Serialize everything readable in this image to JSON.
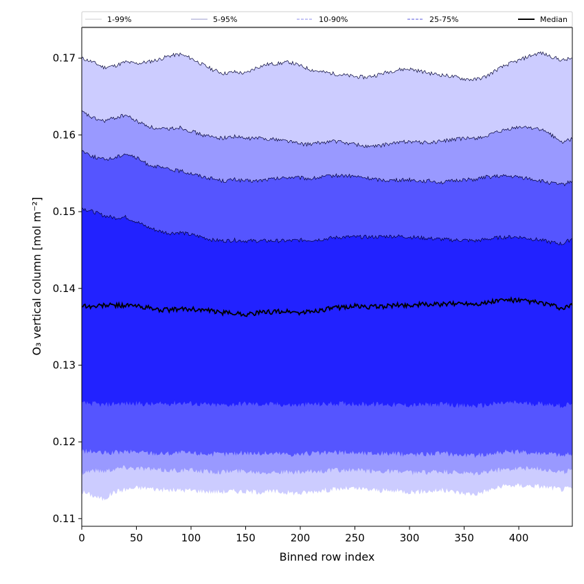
{
  "chart_data": {
    "type": "area",
    "xlabel": "Binned row index",
    "ylabel": "O₃ vertical column [mol m⁻²]",
    "xlim": [
      0,
      449
    ],
    "ylim": [
      0.109,
      0.174
    ],
    "x_ticks": [
      0,
      50,
      100,
      150,
      200,
      250,
      300,
      350,
      400
    ],
    "y_ticks": [
      0.11,
      0.12,
      0.13,
      0.14,
      0.15,
      0.16,
      0.17
    ],
    "y_tick_labels": [
      "0.11",
      "0.12",
      "0.13",
      "0.14",
      "0.15",
      "0.16",
      "0.17"
    ],
    "grid": false,
    "legend_position": "top",
    "x": [
      0,
      10,
      20,
      30,
      40,
      50,
      60,
      70,
      80,
      90,
      100,
      110,
      120,
      130,
      140,
      150,
      160,
      170,
      180,
      190,
      200,
      210,
      220,
      230,
      240,
      250,
      260,
      270,
      280,
      290,
      300,
      310,
      320,
      330,
      340,
      350,
      360,
      370,
      380,
      390,
      400,
      410,
      420,
      430,
      440,
      449
    ],
    "bands": [
      {
        "name": "1-99%",
        "color": "#ccccff",
        "lower": [
          0.1135,
          0.113,
          0.1125,
          0.1135,
          0.1138,
          0.114,
          0.114,
          0.1138,
          0.1137,
          0.1137,
          0.1137,
          0.1136,
          0.1135,
          0.1135,
          0.1136,
          0.1135,
          0.1135,
          0.1135,
          0.1135,
          0.1134,
          0.1133,
          0.1135,
          0.1137,
          0.1138,
          0.1139,
          0.1139,
          0.1138,
          0.1137,
          0.1136,
          0.1136,
          0.1135,
          0.1135,
          0.1136,
          0.1137,
          0.1135,
          0.1133,
          0.1132,
          0.1136,
          0.114,
          0.1143,
          0.1143,
          0.1143,
          0.1142,
          0.114,
          0.1138,
          0.114
        ],
        "upper": [
          0.17,
          0.1695,
          0.1688,
          0.169,
          0.1695,
          0.1693,
          0.1695,
          0.1698,
          0.1703,
          0.1705,
          0.17,
          0.1692,
          0.1685,
          0.168,
          0.1682,
          0.168,
          0.1688,
          0.1692,
          0.1693,
          0.1695,
          0.169,
          0.1685,
          0.1682,
          0.168,
          0.1678,
          0.1676,
          0.1675,
          0.1678,
          0.1682,
          0.1685,
          0.1686,
          0.1683,
          0.168,
          0.1678,
          0.1676,
          0.1673,
          0.1672,
          0.1676,
          0.1685,
          0.1692,
          0.1697,
          0.1703,
          0.1707,
          0.1702,
          0.1697,
          0.17
        ]
      },
      {
        "name": "5-95%",
        "color": "#9999ff",
        "lower": [
          0.116,
          0.1163,
          0.1162,
          0.1165,
          0.1167,
          0.1166,
          0.1165,
          0.1163,
          0.1163,
          0.1163,
          0.1163,
          0.1162,
          0.1161,
          0.1161,
          0.1162,
          0.1162,
          0.1161,
          0.1161,
          0.1161,
          0.116,
          0.116,
          0.1161,
          0.1162,
          0.1163,
          0.1163,
          0.1163,
          0.1162,
          0.1162,
          0.1162,
          0.1161,
          0.116,
          0.116,
          0.1161,
          0.1161,
          0.116,
          0.1159,
          0.1158,
          0.1161,
          0.1163,
          0.1165,
          0.1166,
          0.1165,
          0.1165,
          0.1163,
          0.116,
          0.1163
        ],
        "upper": [
          0.163,
          0.1622,
          0.1618,
          0.1622,
          0.1626,
          0.1618,
          0.1612,
          0.1607,
          0.1608,
          0.161,
          0.1605,
          0.16,
          0.1597,
          0.1596,
          0.1598,
          0.1595,
          0.1596,
          0.1595,
          0.1594,
          0.1592,
          0.1588,
          0.1588,
          0.159,
          0.1592,
          0.159,
          0.1588,
          0.1585,
          0.1585,
          0.1588,
          0.159,
          0.1592,
          0.159,
          0.159,
          0.1592,
          0.1594,
          0.1595,
          0.1596,
          0.1598,
          0.1603,
          0.1607,
          0.161,
          0.161,
          0.1607,
          0.16,
          0.159,
          0.1595
        ]
      },
      {
        "name": "10-90%",
        "color": "#5555ff",
        "lower": [
          0.1188,
          0.1187,
          0.1185,
          0.1186,
          0.1187,
          0.1187,
          0.1186,
          0.1185,
          0.1185,
          0.1186,
          0.1185,
          0.1185,
          0.1184,
          0.1184,
          0.1185,
          0.1186,
          0.1185,
          0.1185,
          0.1185,
          0.1184,
          0.1184,
          0.1185,
          0.1185,
          0.1186,
          0.1186,
          0.1186,
          0.1185,
          0.1185,
          0.1185,
          0.1184,
          0.1184,
          0.1184,
          0.1185,
          0.1185,
          0.1184,
          0.1183,
          0.1182,
          0.1184,
          0.1186,
          0.1187,
          0.1187,
          0.1186,
          0.1186,
          0.1185,
          0.1182,
          0.1185
        ],
        "upper": [
          0.158,
          0.1572,
          0.1568,
          0.157,
          0.1576,
          0.157,
          0.1562,
          0.1558,
          0.1555,
          0.1553,
          0.155,
          0.1546,
          0.1543,
          0.154,
          0.1542,
          0.154,
          0.154,
          0.1542,
          0.1543,
          0.1545,
          0.1544,
          0.1543,
          0.1545,
          0.1547,
          0.1547,
          0.1546,
          0.1544,
          0.1542,
          0.1541,
          0.1541,
          0.1542,
          0.154,
          0.154,
          0.1538,
          0.154,
          0.1542,
          0.1542,
          0.1545,
          0.1546,
          0.1546,
          0.1545,
          0.1543,
          0.154,
          0.1537,
          0.1535,
          0.154
        ]
      },
      {
        "name": "25-75%",
        "color": "#2222ff",
        "lower": [
          0.125,
          0.125,
          0.1248,
          0.125,
          0.125,
          0.125,
          0.1249,
          0.1249,
          0.125,
          0.1251,
          0.125,
          0.1249,
          0.1248,
          0.1248,
          0.1249,
          0.125,
          0.1249,
          0.1249,
          0.1249,
          0.1248,
          0.1248,
          0.1249,
          0.1249,
          0.125,
          0.125,
          0.125,
          0.1249,
          0.1249,
          0.1249,
          0.1248,
          0.1248,
          0.1248,
          0.1249,
          0.1249,
          0.1248,
          0.1247,
          0.1247,
          0.1248,
          0.125,
          0.1251,
          0.1251,
          0.125,
          0.125,
          0.1249,
          0.1247,
          0.125
        ],
        "upper": [
          0.1505,
          0.15,
          0.1495,
          0.1492,
          0.1493,
          0.1487,
          0.148,
          0.1475,
          0.1472,
          0.1473,
          0.147,
          0.1467,
          0.1463,
          0.1462,
          0.1463,
          0.1462,
          0.1462,
          0.1462,
          0.1462,
          0.1462,
          0.1463,
          0.1463,
          0.1464,
          0.1466,
          0.1467,
          0.1467,
          0.1467,
          0.1467,
          0.1468,
          0.1468,
          0.1467,
          0.1466,
          0.1465,
          0.1464,
          0.1463,
          0.1463,
          0.1462,
          0.1464,
          0.1466,
          0.1467,
          0.1467,
          0.1465,
          0.1463,
          0.146,
          0.1458,
          0.1465
        ]
      }
    ],
    "median": {
      "name": "Median",
      "color": "#000000",
      "values": [
        0.1378,
        0.1376,
        0.1378,
        0.1378,
        0.1378,
        0.1377,
        0.1375,
        0.1372,
        0.1372,
        0.1373,
        0.1373,
        0.1372,
        0.137,
        0.1368,
        0.1368,
        0.1366,
        0.1368,
        0.1369,
        0.137,
        0.137,
        0.1368,
        0.137,
        0.1372,
        0.1374,
        0.1376,
        0.1377,
        0.1376,
        0.1376,
        0.1377,
        0.1378,
        0.1378,
        0.1379,
        0.1379,
        0.1379,
        0.138,
        0.1381,
        0.138,
        0.1381,
        0.1384,
        0.1385,
        0.1384,
        0.1383,
        0.1381,
        0.1378,
        0.1373,
        0.1378
      ]
    },
    "legend": [
      {
        "label": "1-99%",
        "color": "#cccccf",
        "style": "solid"
      },
      {
        "label": "5-95%",
        "color": "#9999cc",
        "style": "solid"
      },
      {
        "label": "10-90%",
        "color": "#8888ee",
        "style": "dashed"
      },
      {
        "label": "25-75%",
        "color": "#5555dd",
        "style": "dashed"
      },
      {
        "label": "Median",
        "color": "#000000",
        "style": "solid"
      }
    ]
  }
}
